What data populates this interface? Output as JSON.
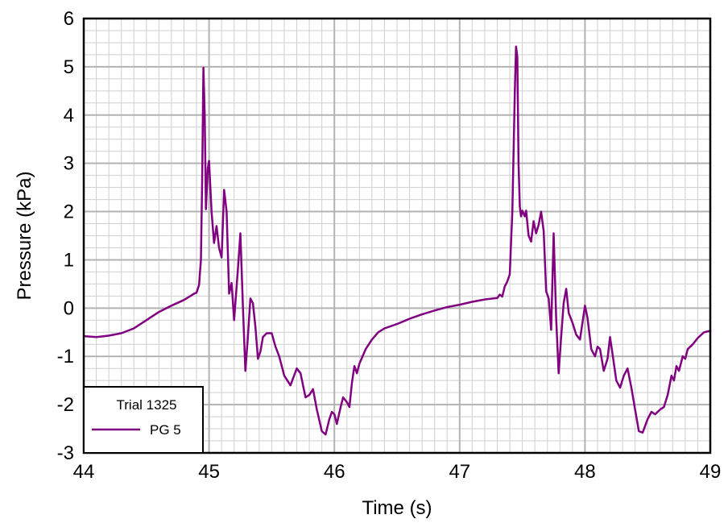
{
  "chart_data": {
    "type": "line",
    "title": "",
    "xlabel": "Time (s)",
    "ylabel": "Pressure (kPa)",
    "xlim": [
      44,
      49
    ],
    "ylim": [
      -3,
      6
    ],
    "x_ticks": [
      44,
      45,
      46,
      47,
      48,
      49
    ],
    "y_ticks": [
      -3,
      -2,
      -1,
      0,
      1,
      2,
      3,
      4,
      5,
      6
    ],
    "x_minor_step": 0.1,
    "y_minor_step": 0.25,
    "grid": true,
    "legend": {
      "placement": "bottom-left",
      "title": "Trial 1325",
      "entries": [
        "PG 5"
      ]
    },
    "series": [
      {
        "name": "PG 5",
        "color": "#800080",
        "points": [
          [
            44.0,
            -0.58
          ],
          [
            44.1,
            -0.6
          ],
          [
            44.2,
            -0.57
          ],
          [
            44.3,
            -0.52
          ],
          [
            44.4,
            -0.42
          ],
          [
            44.5,
            -0.25
          ],
          [
            44.6,
            -0.08
          ],
          [
            44.7,
            0.05
          ],
          [
            44.8,
            0.17
          ],
          [
            44.85,
            0.25
          ],
          [
            44.88,
            0.3
          ],
          [
            44.9,
            0.32
          ],
          [
            44.92,
            0.48
          ],
          [
            44.935,
            1.0
          ],
          [
            44.945,
            2.6
          ],
          [
            44.955,
            4.98
          ],
          [
            44.965,
            4.0
          ],
          [
            44.975,
            2.05
          ],
          [
            44.99,
            2.9
          ],
          [
            45.0,
            3.05
          ],
          [
            45.02,
            2.0
          ],
          [
            45.04,
            1.35
          ],
          [
            45.06,
            1.7
          ],
          [
            45.08,
            1.25
          ],
          [
            45.1,
            1.05
          ],
          [
            45.12,
            2.45
          ],
          [
            45.14,
            2.0
          ],
          [
            45.16,
            0.3
          ],
          [
            45.18,
            0.52
          ],
          [
            45.2,
            -0.25
          ],
          [
            45.23,
            0.8
          ],
          [
            45.25,
            1.55
          ],
          [
            45.27,
            0.05
          ],
          [
            45.29,
            -1.3
          ],
          [
            45.31,
            -0.6
          ],
          [
            45.33,
            0.2
          ],
          [
            45.35,
            0.1
          ],
          [
            45.37,
            -0.4
          ],
          [
            45.39,
            -1.05
          ],
          [
            45.41,
            -0.9
          ],
          [
            45.43,
            -0.6
          ],
          [
            45.46,
            -0.52
          ],
          [
            45.5,
            -0.52
          ],
          [
            45.53,
            -0.8
          ],
          [
            45.56,
            -1.0
          ],
          [
            45.6,
            -1.4
          ],
          [
            45.65,
            -1.6
          ],
          [
            45.7,
            -1.25
          ],
          [
            45.73,
            -1.35
          ],
          [
            45.77,
            -1.85
          ],
          [
            45.8,
            -1.8
          ],
          [
            45.83,
            -1.68
          ],
          [
            45.86,
            -2.1
          ],
          [
            45.9,
            -2.55
          ],
          [
            45.93,
            -2.62
          ],
          [
            45.96,
            -2.3
          ],
          [
            45.98,
            -2.15
          ],
          [
            46.0,
            -2.2
          ],
          [
            46.02,
            -2.4
          ],
          [
            46.05,
            -2.05
          ],
          [
            46.07,
            -1.85
          ],
          [
            46.1,
            -1.95
          ],
          [
            46.12,
            -2.05
          ],
          [
            46.14,
            -1.55
          ],
          [
            46.16,
            -1.2
          ],
          [
            46.18,
            -1.35
          ],
          [
            46.2,
            -1.15
          ],
          [
            46.25,
            -0.85
          ],
          [
            46.3,
            -0.65
          ],
          [
            46.35,
            -0.5
          ],
          [
            46.4,
            -0.42
          ],
          [
            46.5,
            -0.33
          ],
          [
            46.6,
            -0.22
          ],
          [
            46.7,
            -0.13
          ],
          [
            46.8,
            -0.05
          ],
          [
            46.9,
            0.02
          ],
          [
            47.0,
            0.07
          ],
          [
            47.1,
            0.13
          ],
          [
            47.2,
            0.18
          ],
          [
            47.3,
            0.21
          ],
          [
            47.32,
            0.28
          ],
          [
            47.34,
            0.24
          ],
          [
            47.36,
            0.45
          ],
          [
            47.38,
            0.55
          ],
          [
            47.4,
            0.7
          ],
          [
            47.42,
            2.0
          ],
          [
            47.44,
            4.5
          ],
          [
            47.45,
            5.42
          ],
          [
            47.46,
            5.2
          ],
          [
            47.47,
            3.0
          ],
          [
            47.48,
            2.1
          ],
          [
            47.49,
            1.9
          ],
          [
            47.5,
            2.02
          ],
          [
            47.52,
            1.9
          ],
          [
            47.53,
            2.02
          ],
          [
            47.55,
            1.5
          ],
          [
            47.57,
            1.38
          ],
          [
            47.59,
            1.8
          ],
          [
            47.61,
            1.55
          ],
          [
            47.63,
            1.72
          ],
          [
            47.65,
            2.0
          ],
          [
            47.67,
            1.6
          ],
          [
            47.69,
            0.35
          ],
          [
            47.71,
            0.2
          ],
          [
            47.73,
            -0.45
          ],
          [
            47.75,
            1.55
          ],
          [
            47.77,
            -0.2
          ],
          [
            47.79,
            -1.35
          ],
          [
            47.81,
            -0.6
          ],
          [
            47.83,
            0.1
          ],
          [
            47.85,
            0.4
          ],
          [
            47.87,
            -0.1
          ],
          [
            47.9,
            -0.3
          ],
          [
            47.93,
            -0.55
          ],
          [
            47.96,
            -0.65
          ],
          [
            48.0,
            0.05
          ],
          [
            48.02,
            -0.2
          ],
          [
            48.05,
            -0.85
          ],
          [
            48.08,
            -1.0
          ],
          [
            48.1,
            -0.8
          ],
          [
            48.12,
            -0.85
          ],
          [
            48.15,
            -1.3
          ],
          [
            48.18,
            -1.05
          ],
          [
            48.2,
            -0.6
          ],
          [
            48.22,
            -0.95
          ],
          [
            48.25,
            -1.5
          ],
          [
            48.28,
            -1.65
          ],
          [
            48.31,
            -1.4
          ],
          [
            48.34,
            -1.25
          ],
          [
            48.37,
            -1.65
          ],
          [
            48.4,
            -2.1
          ],
          [
            48.43,
            -2.55
          ],
          [
            48.46,
            -2.58
          ],
          [
            48.5,
            -2.3
          ],
          [
            48.53,
            -2.15
          ],
          [
            48.56,
            -2.2
          ],
          [
            48.6,
            -2.1
          ],
          [
            48.63,
            -2.05
          ],
          [
            48.66,
            -1.8
          ],
          [
            48.69,
            -1.4
          ],
          [
            48.71,
            -1.5
          ],
          [
            48.73,
            -1.2
          ],
          [
            48.75,
            -1.3
          ],
          [
            48.78,
            -1.0
          ],
          [
            48.8,
            -1.05
          ],
          [
            48.82,
            -0.85
          ],
          [
            48.86,
            -0.75
          ],
          [
            48.9,
            -0.62
          ],
          [
            48.95,
            -0.5
          ],
          [
            49.0,
            -0.47
          ]
        ]
      }
    ]
  }
}
